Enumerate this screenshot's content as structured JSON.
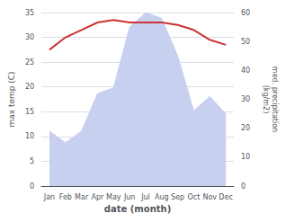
{
  "chart_data": {
    "type": "line",
    "categories": [
      "Jan",
      "Feb",
      "Mar",
      "Apr",
      "May",
      "Jun",
      "Jul",
      "Aug",
      "Sep",
      "Oct",
      "Nov",
      "Dec"
    ],
    "series": [
      {
        "type": "area",
        "axis": "y2",
        "color": "#c8d0f0",
        "values": [
          19,
          15,
          19,
          32,
          34,
          55,
          60,
          58,
          45,
          26,
          31,
          25
        ]
      },
      {
        "type": "line",
        "axis": "y",
        "color": "#cc3333",
        "values": [
          27.5,
          30.0,
          31.5,
          33.0,
          33.5,
          33.0,
          33.0,
          33.0,
          32.5,
          31.5,
          29.5,
          28.5
        ]
      }
    ],
    "xlabel": "date (month)",
    "ylabel": "max temp (C)",
    "y2label": "med. precipitation\n(kg/m2)",
    "ylim": [
      0,
      35
    ],
    "yticks": [
      0,
      5,
      10,
      15,
      20,
      25,
      30,
      35
    ],
    "y2lim": [
      0,
      60
    ],
    "y2ticks": [
      0,
      10,
      20,
      30,
      40,
      50,
      60
    ],
    "grid": true
  }
}
